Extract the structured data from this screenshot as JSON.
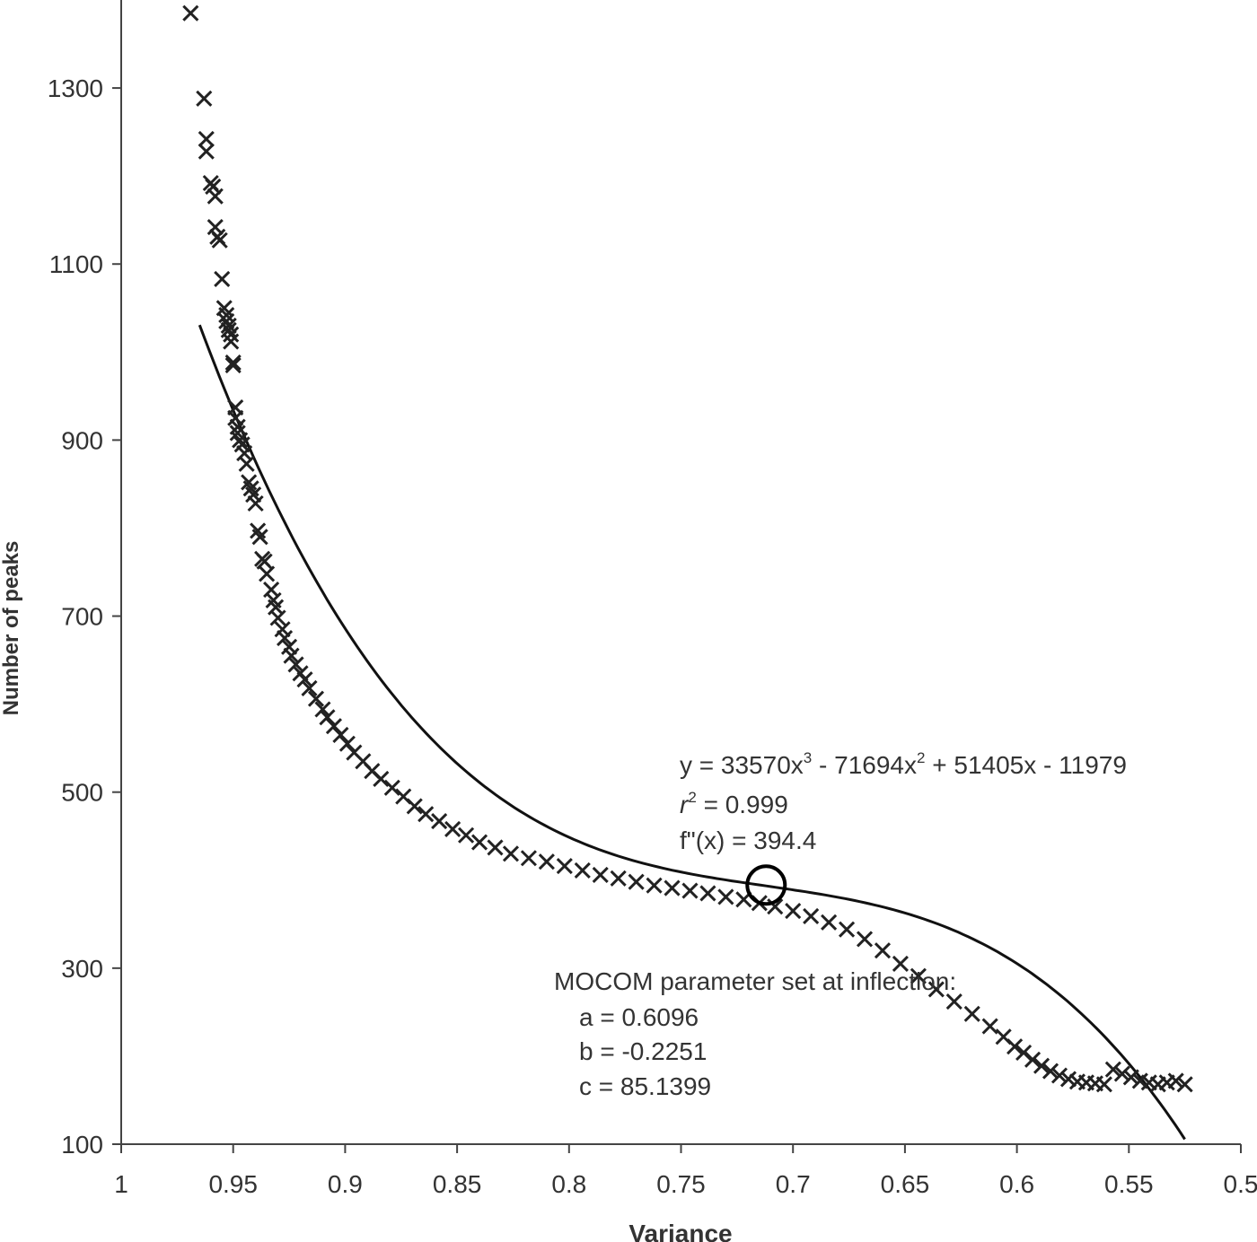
{
  "chart_data": {
    "type": "scatter",
    "title": "",
    "xlabel": "Variance",
    "ylabel": "Number of peaks",
    "xlim": [
      1,
      0.5
    ],
    "x_reversed": true,
    "ylim": [
      100,
      1400
    ],
    "xticks": [
      "1",
      "0.95",
      "0.9",
      "0.85",
      "0.8",
      "0.75",
      "0.7",
      "0.65",
      "0.6",
      "0.55",
      "0.5"
    ],
    "yticks": [
      "100",
      "300",
      "500",
      "700",
      "900",
      "1100",
      "1300"
    ],
    "grid": false,
    "marker": "x",
    "series": [
      {
        "x": [
          0.969,
          0.963,
          0.962,
          0.962,
          0.96,
          0.959,
          0.958,
          0.958,
          0.957,
          0.956,
          0.955,
          0.954,
          0.953,
          0.953,
          0.952,
          0.952,
          0.951,
          0.951,
          0.95,
          0.95,
          0.949,
          0.949,
          0.948,
          0.948,
          0.947,
          0.946,
          0.945,
          0.944,
          0.943,
          0.942,
          0.941,
          0.94,
          0.939,
          0.938,
          0.937,
          0.936,
          0.935,
          0.933,
          0.932,
          0.931,
          0.93,
          0.928,
          0.927,
          0.925,
          0.924,
          0.922,
          0.92,
          0.918,
          0.916,
          0.913,
          0.91,
          0.908,
          0.905,
          0.902,
          0.899,
          0.896,
          0.892,
          0.888,
          0.884,
          0.879,
          0.874,
          0.869,
          0.864,
          0.858,
          0.852,
          0.846,
          0.84,
          0.833,
          0.826,
          0.818,
          0.81,
          0.802,
          0.794,
          0.786,
          0.778,
          0.77,
          0.762,
          0.754,
          0.746,
          0.738,
          0.73,
          0.722,
          0.715,
          0.708,
          0.7,
          0.692,
          0.684,
          0.676,
          0.668,
          0.66,
          0.652,
          0.644,
          0.636,
          0.628,
          0.62,
          0.612,
          0.606,
          0.601,
          0.597,
          0.593,
          0.589,
          0.585,
          0.581,
          0.577,
          0.573,
          0.569,
          0.565,
          0.561,
          0.557,
          0.553,
          0.549,
          0.545,
          0.541,
          0.537,
          0.533,
          0.529,
          0.525
        ],
        "y": [
          1385,
          1288,
          1242,
          1228,
          1192,
          1188,
          1177,
          1142,
          1131,
          1127,
          1083,
          1050,
          1042,
          1035,
          1030,
          1025,
          1020,
          1012,
          988,
          985,
          937,
          925,
          915,
          908,
          900,
          895,
          885,
          873,
          852,
          845,
          838,
          828,
          797,
          790,
          765,
          762,
          748,
          730,
          718,
          710,
          698,
          685,
          675,
          665,
          655,
          645,
          635,
          628,
          618,
          606,
          594,
          585,
          575,
          565,
          555,
          545,
          535,
          524,
          515,
          505,
          495,
          484,
          475,
          467,
          458,
          451,
          443,
          437,
          430,
          425,
          421,
          416,
          411,
          406,
          402,
          398,
          394,
          391,
          388,
          385,
          381,
          378,
          374,
          370,
          365,
          359,
          352,
          344,
          333,
          320,
          305,
          291,
          276,
          262,
          248,
          234,
          222,
          211,
          204,
          196,
          189,
          183,
          178,
          174,
          171,
          170,
          169,
          168,
          185,
          180,
          176,
          172,
          170,
          168,
          170,
          172,
          168
        ]
      }
    ],
    "fit": {
      "coefficients": [
        33570,
        -71694,
        51405,
        -11979
      ],
      "x_range": [
        0.965,
        0.525
      ]
    },
    "inflection_marker": {
      "x": 0.712,
      "y": 394.4
    },
    "annotations": {
      "equation": {
        "y_label": "y = 33570x",
        "pow3": "3",
        "mid": " - 71694x",
        "pow2": "2",
        "tail": " + 51405x - 11979"
      },
      "r2": {
        "r": "r",
        "pow": "2",
        "value": " = 0.999"
      },
      "fpp": "f\"(x) = 394.4",
      "mocom": {
        "heading": "MOCOM parameter set at inflection:",
        "a": "a =  0.6096",
        "b": "b = -0.2251",
        "c": "c = 85.1399"
      }
    }
  }
}
